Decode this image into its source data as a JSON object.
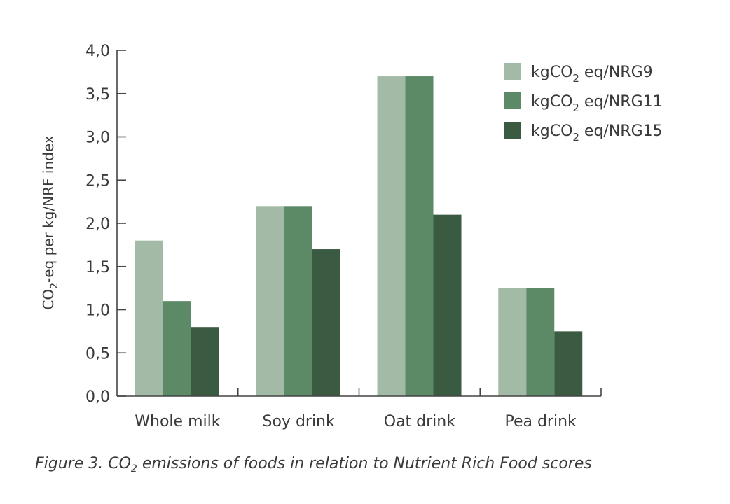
{
  "caption": {
    "prefix": "Figure 3. CO",
    "sub": "2",
    "suffix": " emissions of foods in relation to Nutrient Rich Food scores"
  },
  "chart_data": {
    "type": "bar",
    "categories": [
      "Whole milk",
      "Soy drink",
      "Oat drink",
      "Pea drink"
    ],
    "series": [
      {
        "name": "kgCO2 eq/NRG9",
        "label_parts": [
          "kgCO",
          "2",
          " eq/NRG9"
        ],
        "color": "#a3bba6",
        "values": [
          1.8,
          2.2,
          3.7,
          1.25
        ]
      },
      {
        "name": "kgCO2 eq/NRG11",
        "label_parts": [
          "kgCO",
          "2",
          " eq/NRG11"
        ],
        "color": "#5c8a66",
        "values": [
          1.1,
          2.2,
          3.7,
          1.25
        ]
      },
      {
        "name": "kgCO2 eq/NRG15",
        "label_parts": [
          "kgCO",
          "2",
          " eq/NRG15"
        ],
        "color": "#3b5a42",
        "values": [
          0.8,
          1.7,
          2.1,
          0.75
        ]
      }
    ],
    "yticks": [
      "0,0",
      "0,5",
      "1,0",
      "1,5",
      "2,0",
      "2,5",
      "3,0",
      "3,5",
      "4,0"
    ],
    "ylim": [
      0,
      4
    ],
    "ylabel_parts": [
      "CO",
      "2",
      "-eq per kg/NRF index"
    ],
    "xlabel": "",
    "legend": "top-right",
    "grid": false
  }
}
